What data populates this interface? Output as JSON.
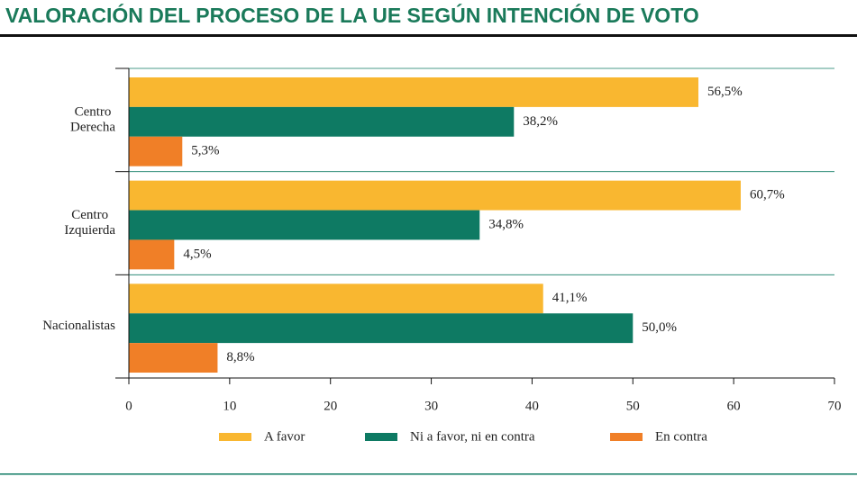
{
  "chart_data": {
    "type": "bar",
    "orientation": "horizontal",
    "title": "VALORACIÓN DEL PROCESO DE LA UE SEGÚN INTENCIÓN DE VOTO",
    "categories": [
      [
        "Centro",
        "Derecha"
      ],
      [
        "Centro",
        "Izquierda"
      ],
      [
        "Nacionalistas"
      ]
    ],
    "series": [
      {
        "name": "A favor",
        "color": "#f9b730",
        "values": [
          56.5,
          60.7,
          41.1
        ],
        "value_labels": [
          "56,5%",
          "60,7%",
          "41,1%"
        ]
      },
      {
        "name": "Ni a favor, ni en contra",
        "color": "#0e7a63",
        "values": [
          38.2,
          34.8,
          50.0
        ],
        "value_labels": [
          "38,2%",
          "34,8%",
          "50,0%"
        ]
      },
      {
        "name": "En contra",
        "color": "#f07f27",
        "values": [
          5.3,
          4.5,
          8.8
        ],
        "value_labels": [
          "5,3%",
          "4,5%",
          "8,8%"
        ]
      }
    ],
    "xlim": [
      0,
      70
    ],
    "xticks": [
      0,
      10,
      20,
      30,
      40,
      50,
      60,
      70
    ],
    "legend": "bottom"
  }
}
